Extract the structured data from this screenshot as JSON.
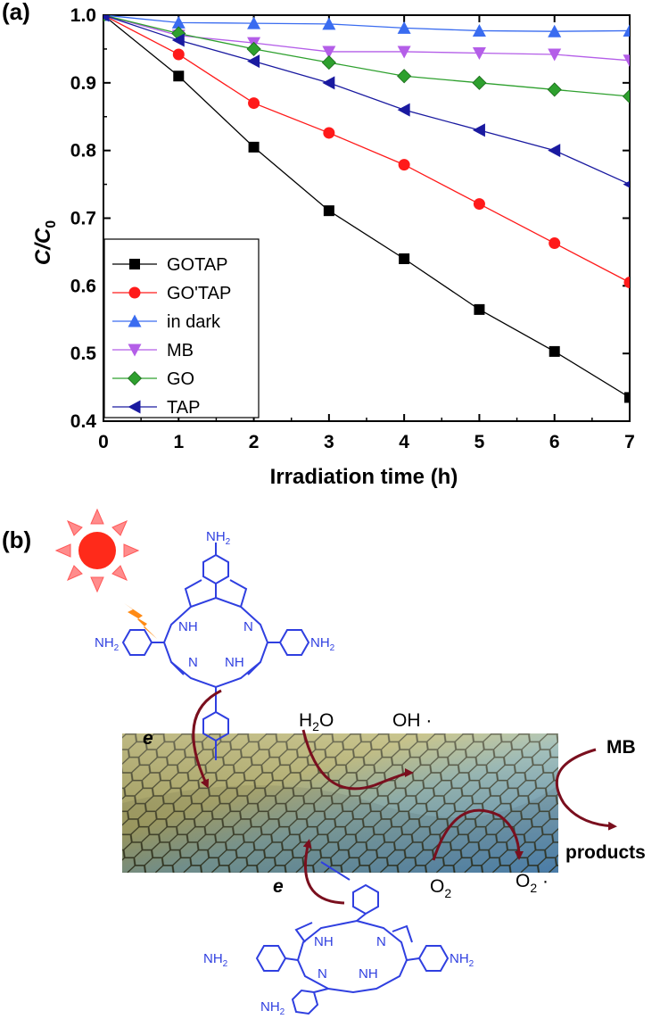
{
  "panel_labels": {
    "a": "(a)",
    "b": "(b)"
  },
  "chart_data": {
    "type": "line",
    "title": "",
    "xlabel": "Irradiation time (h)",
    "ylabel_main": "C/C",
    "ylabel_sub": "0",
    "xlim": [
      0,
      7
    ],
    "ylim": [
      0.4,
      1.0
    ],
    "x_ticks": [
      "0",
      "1",
      "2",
      "3",
      "4",
      "5",
      "6",
      "7"
    ],
    "y_ticks": [
      "0.4",
      "0.5",
      "0.6",
      "0.7",
      "0.8",
      "0.9",
      "1.0"
    ],
    "legend_position": "bottom-left",
    "x": [
      0,
      1,
      2,
      3,
      4,
      5,
      6,
      7
    ],
    "series": [
      {
        "name": "GOTAP",
        "marker": "square",
        "color": "#000000",
        "values": [
          1.0,
          0.91,
          0.805,
          0.711,
          0.64,
          0.565,
          0.503,
          0.435
        ]
      },
      {
        "name": "GO'TAP",
        "marker": "circle",
        "color": "#ff1a1a",
        "values": [
          1.0,
          0.942,
          0.87,
          0.826,
          0.779,
          0.721,
          0.663,
          0.605
        ]
      },
      {
        "name": "in dark",
        "marker": "triangle-up",
        "color": "#3a6cf0",
        "values": [
          1.0,
          0.989,
          0.988,
          0.987,
          0.981,
          0.977,
          0.976,
          0.977
        ]
      },
      {
        "name": "MB",
        "marker": "triangle-down",
        "color": "#b45ee8",
        "values": [
          1.0,
          0.97,
          0.959,
          0.946,
          0.946,
          0.944,
          0.942,
          0.933
        ]
      },
      {
        "name": "GO",
        "marker": "diamond",
        "color": "#2ea02e",
        "values": [
          1.0,
          0.973,
          0.95,
          0.93,
          0.91,
          0.9,
          0.89,
          0.88
        ]
      },
      {
        "name": "TAP",
        "marker": "triangle-left",
        "color": "#1a1aa0",
        "values": [
          1.0,
          0.963,
          0.932,
          0.9,
          0.86,
          0.83,
          0.8,
          0.75
        ]
      }
    ]
  },
  "scheme": {
    "nh2": "NH",
    "nh2_sub": "2",
    "nh": "NH",
    "n": "N",
    "electron": "e",
    "h2o_h": "H",
    "h2o_sub": "2",
    "h2o_o": "O",
    "oh": "OH ·",
    "o2_o": "O",
    "o2_sub": "2",
    "o2rad_o": "O",
    "o2rad_sub": "2",
    "o2rad_dot": " ·",
    "mb": "MB",
    "products": "products",
    "colors": {
      "porphyrin": "#2f3fe0",
      "arrow": "#7a0f1e",
      "sun": "#ff2a1a",
      "sun_ray": "#ff8c8c",
      "bolt": "#ff8a14"
    }
  }
}
